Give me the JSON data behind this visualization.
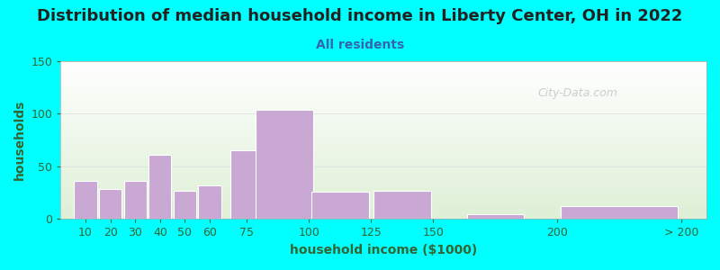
{
  "title": "Distribution of median household income in Liberty Center, OH in 2022",
  "subtitle": "All residents",
  "xlabel": "household income ($1000)",
  "ylabel": "households",
  "background_outer": "#00FFFF",
  "background_inner_top": "#FFFFFF",
  "background_inner_bottom": "#DDEEDD",
  "bar_color": "#C9A8D4",
  "bar_edgecolor": "#FFFFFF",
  "bar_linewidth": 0.8,
  "title_fontsize": 13,
  "subtitle_fontsize": 10,
  "label_fontsize": 10,
  "tick_fontsize": 9,
  "values": [
    36,
    29,
    36,
    61,
    27,
    32,
    65,
    104,
    26,
    27,
    5,
    12
  ],
  "bar_positions": [
    10,
    20,
    30,
    40,
    50,
    60,
    75,
    90,
    112.5,
    137.5,
    175,
    225
  ],
  "bar_actual_widths": [
    9.5,
    9.5,
    9.5,
    9.5,
    9.5,
    9.5,
    14,
    24,
    24,
    24,
    24,
    49
  ],
  "tick_positions": [
    10,
    20,
    30,
    40,
    50,
    60,
    75,
    100,
    125,
    150,
    200,
    250
  ],
  "tick_labels": [
    "10",
    "20",
    "30",
    "40",
    "50",
    "60",
    "75",
    "100",
    "125",
    "150",
    "200",
    "> 200"
  ],
  "ylim": [
    0,
    150
  ],
  "xlim": [
    0,
    260
  ],
  "yticks": [
    0,
    50,
    100,
    150
  ],
  "watermark": "City-Data.com",
  "watermark_color": "#BBBBBB",
  "text_color": "#336633",
  "title_color": "#222222",
  "subtitle_color": "#3366AA"
}
